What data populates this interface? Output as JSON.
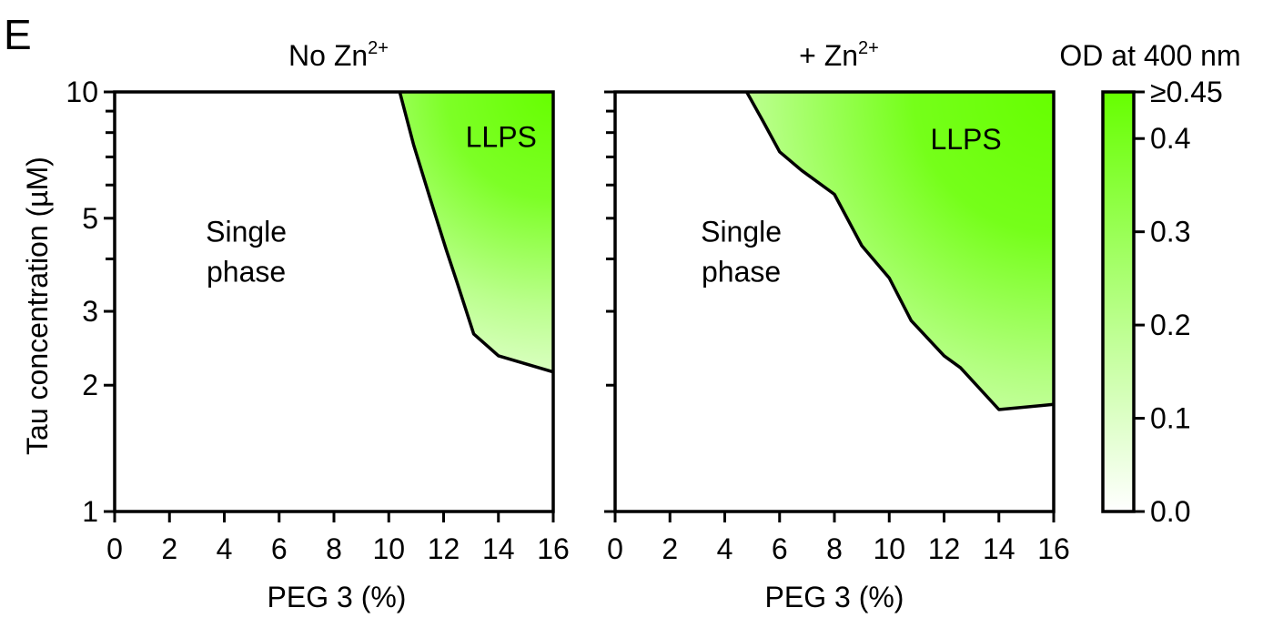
{
  "panel_letter": "E",
  "colorbar": {
    "title": "OD at 400 nm",
    "ticks": [
      "0.0",
      "0.1",
      "0.2",
      "0.3",
      "0.4",
      "≥0.45"
    ],
    "tick_values": [
      0.0,
      0.1,
      0.2,
      0.3,
      0.4,
      0.45
    ],
    "range": [
      0,
      0.45
    ],
    "color_min": "#ffffff",
    "color_max": "#66ff00"
  },
  "chart_data": [
    {
      "type": "heatmap",
      "title": "No Zn",
      "title_superscript": "2+",
      "xlabel": "PEG 3 (%)",
      "ylabel": "Tau concentration (µM)",
      "xlim": [
        0,
        16
      ],
      "ylim": [
        1,
        10
      ],
      "y_scale": "log",
      "x_ticks": [
        "0",
        "2",
        "4",
        "6",
        "8",
        "10",
        "12",
        "14",
        "16"
      ],
      "y_tick_labels": [
        "1",
        "2",
        "3",
        "5",
        "10"
      ],
      "y_minor_ticks": [
        4,
        6,
        7,
        8,
        9
      ],
      "grid": false,
      "phase_boundary": {
        "x": [
          10.4,
          10.9,
          11.5,
          12.1,
          12.5,
          13.1,
          14.0,
          16.0
        ],
        "y": [
          10,
          7.5,
          5.6,
          4.2,
          3.5,
          2.65,
          2.35,
          2.15
        ]
      },
      "region_labels": [
        {
          "text": "LLPS",
          "x": 14.1,
          "y": 7.4
        },
        {
          "text": "Single\nphase",
          "x": 4.8,
          "y": 4.4
        }
      ],
      "od_max_point": {
        "x": 16,
        "y": 10,
        "od": 0.45
      }
    },
    {
      "type": "heatmap",
      "title": "+ Zn",
      "title_superscript": "2+",
      "xlabel": "PEG 3 (%)",
      "xlim": [
        0,
        16
      ],
      "ylim": [
        1,
        10
      ],
      "y_scale": "log",
      "x_ticks": [
        "0",
        "2",
        "4",
        "6",
        "8",
        "10",
        "12",
        "14",
        "16"
      ],
      "y_minor_ticks": [
        2,
        3,
        4,
        5,
        6,
        7,
        8,
        9
      ],
      "grid": false,
      "phase_boundary": {
        "x": [
          4.8,
          5.4,
          6.0,
          6.8,
          8.0,
          9.0,
          10.0,
          10.8,
          12.0,
          12.6,
          14.0,
          16.0
        ],
        "y": [
          10,
          8.5,
          7.2,
          6.5,
          5.7,
          4.3,
          3.6,
          2.85,
          2.35,
          2.2,
          1.75,
          1.8
        ]
      },
      "region_labels": [
        {
          "text": "LLPS",
          "x": 12.8,
          "y": 7.3
        },
        {
          "text": "Single\nphase",
          "x": 4.6,
          "y": 4.4
        }
      ],
      "od_max_point": {
        "x": 16,
        "y": 10,
        "od": 0.45
      }
    }
  ]
}
